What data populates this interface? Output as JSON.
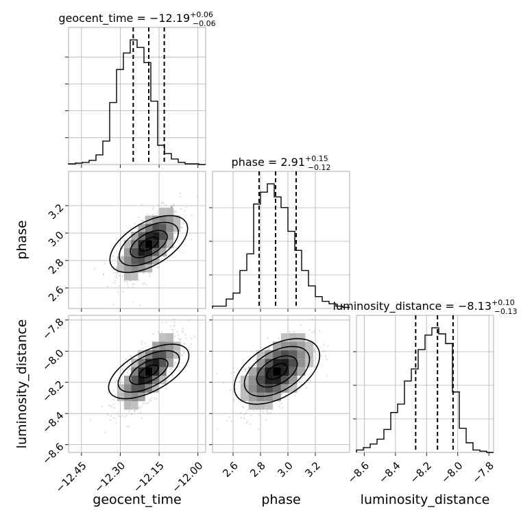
{
  "colors": {
    "frame": "#9a9a9a",
    "grid": "#b0b0b0",
    "line": "#000000",
    "scatter": "#8a8a8a"
  },
  "chart_data": [
    {
      "type": "histogram",
      "panel": "geocent_time",
      "title_name": "geocent_time",
      "title_median": "−12.19",
      "title_plus": "+0.06",
      "title_minus": "−0.06",
      "xlim": [
        -12.5,
        -11.97
      ],
      "bin_edges_start": -12.5,
      "bin_width": 0.0265,
      "counts": [
        1,
        2,
        3,
        6,
        14,
        34,
        90,
        138,
        162,
        181,
        170,
        148,
        92,
        28,
        16,
        8,
        3,
        1,
        1,
        0
      ],
      "quantiles": [
        -12.25,
        -12.19,
        -12.13
      ],
      "ytick_count": 4
    },
    {
      "type": "histogram",
      "panel": "phase",
      "title_name": "phase",
      "title_median": "2.91",
      "title_plus": "+0.15",
      "title_minus": "−0.12",
      "xlim": [
        2.45,
        3.45
      ],
      "bin_edges_start": 2.45,
      "bin_width": 0.05,
      "counts": [
        2,
        2,
        8,
        13,
        32,
        46,
        88,
        98,
        105,
        94,
        85,
        65,
        49,
        32,
        19,
        10,
        6,
        4,
        2,
        1
      ],
      "quantiles": [
        2.79,
        2.91,
        3.06
      ],
      "ytick_count": 3
    },
    {
      "type": "histogram",
      "panel": "luminosity_distance",
      "title_name": "luminosity_distance",
      "title_median": "−8.13",
      "title_plus": "+0.10",
      "title_minus": "−0.13",
      "xlim": [
        -8.65,
        -7.77
      ],
      "bin_edges_start": -8.65,
      "bin_width": 0.044,
      "counts": [
        2,
        4,
        7,
        11,
        19,
        33,
        40,
        59,
        69,
        85,
        97,
        103,
        98,
        90,
        50,
        20,
        8,
        2,
        1,
        0
      ],
      "quantiles": [
        -8.27,
        -8.13,
        -8.03
      ],
      "ytick_count": 3
    },
    {
      "type": "scatter",
      "panel": "phase vs geocent_time",
      "x_param": "geocent_time",
      "y_param": "phase",
      "xlim": [
        -12.5,
        -11.97
      ],
      "ylim": [
        2.45,
        3.45
      ],
      "center": [
        -12.19,
        2.92
      ],
      "spread": [
        0.06,
        0.13
      ],
      "correlation": 0.65
    },
    {
      "type": "scatter",
      "panel": "luminosity_distance vs geocent_time",
      "x_param": "geocent_time",
      "y_param": "luminosity_distance",
      "xlim": [
        -12.5,
        -11.97
      ],
      "ylim": [
        -8.65,
        -7.77
      ],
      "center": [
        -12.19,
        -8.13
      ],
      "spread": [
        0.06,
        0.12
      ],
      "correlation": 0.72
    },
    {
      "type": "scatter",
      "panel": "luminosity_distance vs phase",
      "x_param": "phase",
      "y_param": "luminosity_distance",
      "xlim": [
        2.45,
        3.45
      ],
      "ylim": [
        -8.65,
        -7.77
      ],
      "center": [
        2.92,
        -8.13
      ],
      "spread": [
        0.13,
        0.12
      ],
      "correlation": 0.55
    }
  ],
  "axes": {
    "geocent_time": {
      "label": "geocent_time",
      "ticks": [
        -12.45,
        -12.3,
        -12.15,
        -12.0
      ],
      "tick_labels": [
        "−12.45",
        "−12.30",
        "−12.15",
        "−12.00"
      ]
    },
    "phase": {
      "label": "phase",
      "ticks": [
        2.6,
        2.8,
        3.0,
        3.2
      ],
      "tick_labels": [
        "2.6",
        "2.8",
        "3.0",
        "3.2"
      ]
    },
    "luminosity_distance": {
      "label": "luminosity_distance",
      "ticks": [
        -8.6,
        -8.4,
        -8.2,
        -8.0,
        -7.8
      ],
      "tick_labels": [
        "−8.6",
        "−8.4",
        "−8.2",
        "−8.0",
        "−7.8"
      ]
    }
  }
}
